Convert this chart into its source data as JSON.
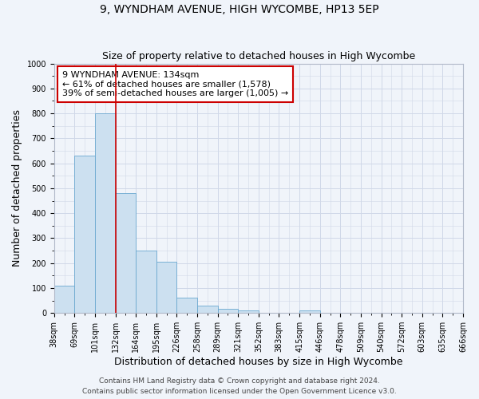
{
  "title": "9, WYNDHAM AVENUE, HIGH WYCOMBE, HP13 5EP",
  "subtitle": "Size of property relative to detached houses in High Wycombe",
  "xlabel": "Distribution of detached houses by size in High Wycombe",
  "ylabel": "Number of detached properties",
  "bar_values": [
    110,
    630,
    800,
    480,
    250,
    205,
    62,
    28,
    18,
    10,
    0,
    0,
    10,
    0,
    0,
    0,
    0,
    0,
    0,
    0
  ],
  "bin_labels": [
    "38sqm",
    "69sqm",
    "101sqm",
    "132sqm",
    "164sqm",
    "195sqm",
    "226sqm",
    "258sqm",
    "289sqm",
    "321sqm",
    "352sqm",
    "383sqm",
    "415sqm",
    "446sqm",
    "478sqm",
    "509sqm",
    "540sqm",
    "572sqm",
    "603sqm",
    "635sqm",
    "666sqm"
  ],
  "bar_color": "#cce0f0",
  "bar_edge_color": "#6aa8d0",
  "vline_label": "132sqm",
  "vline_color": "#cc0000",
  "annotation_box_text": "9 WYNDHAM AVENUE: 134sqm\n← 61% of detached houses are smaller (1,578)\n39% of semi-detached houses are larger (1,005) →",
  "annotation_box_color": "#cc0000",
  "ylim": [
    0,
    1000
  ],
  "yticks": [
    0,
    100,
    200,
    300,
    400,
    500,
    600,
    700,
    800,
    900,
    1000
  ],
  "footer_line1": "Contains HM Land Registry data © Crown copyright and database right 2024.",
  "footer_line2": "Contains public sector information licensed under the Open Government Licence v3.0.",
  "background_color": "#f0f4fa",
  "grid_color": "#d0d8e8",
  "title_fontsize": 10,
  "subtitle_fontsize": 9,
  "axis_label_fontsize": 9,
  "tick_fontsize": 7,
  "annotation_fontsize": 8,
  "footer_fontsize": 6.5
}
